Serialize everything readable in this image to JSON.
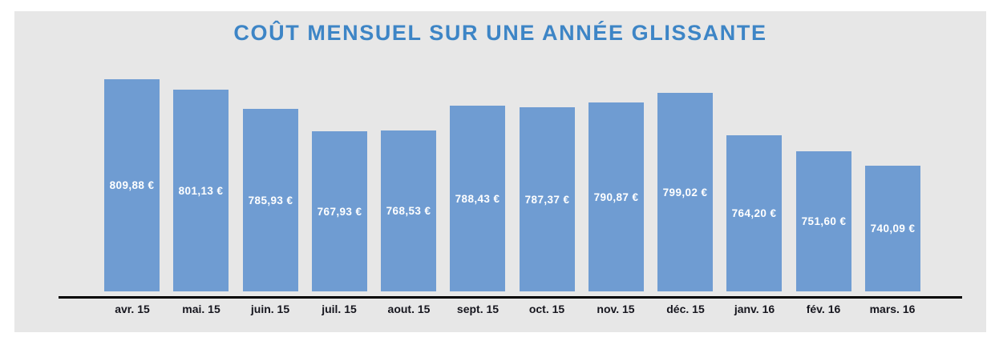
{
  "page": {
    "background": "#ffffff",
    "panel_background": "#e7e7e7"
  },
  "chart_data": {
    "type": "bar",
    "title": "COÛT MENSUEL SUR UNE ANNÉE GLISSANTE",
    "categories": [
      "avr. 15",
      "mai. 15",
      "juin. 15",
      "juil. 15",
      "aout. 15",
      "sept. 15",
      "oct. 15",
      "nov. 15",
      "déc. 15",
      "janv. 16",
      "fév. 16",
      "mars. 16"
    ],
    "values": [
      809.88,
      801.13,
      785.93,
      767.93,
      768.53,
      788.43,
      787.37,
      790.87,
      799.02,
      764.2,
      751.6,
      740.09
    ],
    "value_labels": [
      "809,88 €",
      "801,13 €",
      "785,93 €",
      "767,93 €",
      "768,53 €",
      "788,43 €",
      "787,37 €",
      "790,87 €",
      "799,02 €",
      "764,20 €",
      "751,60 €",
      "740,09 €"
    ],
    "xlabel": "",
    "ylabel": "",
    "ylim": [
      638,
      865
    ],
    "grid": false,
    "legend": "none",
    "bar_color": "#6f9cd2",
    "value_label_color": "#ffffff",
    "title_color": "#3d85c6",
    "axis_line_color": "#000000",
    "category_label_color": "#16161e"
  }
}
